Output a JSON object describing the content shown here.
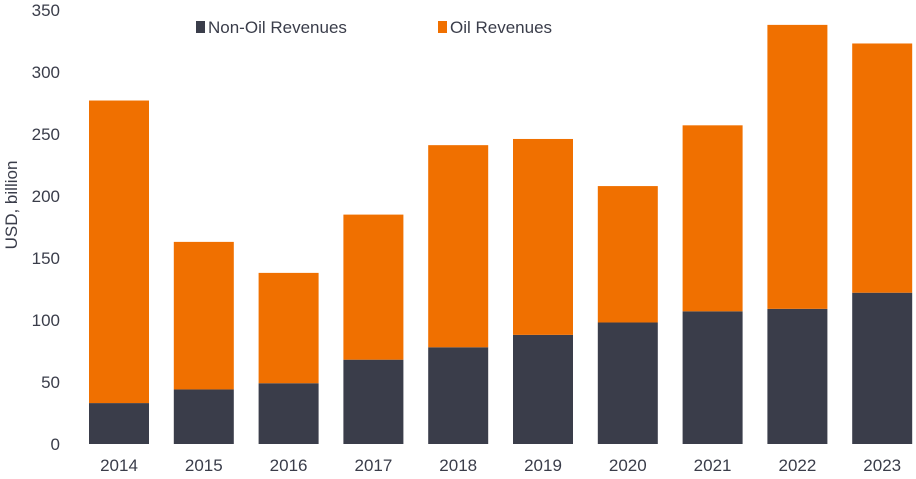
{
  "chart_data": {
    "type": "bar",
    "stacked": true,
    "title": "",
    "xlabel": "",
    "ylabel": "USD, billion",
    "ylim": [
      0,
      350
    ],
    "yticks": [
      0,
      50,
      100,
      150,
      200,
      250,
      300,
      350
    ],
    "grid": false,
    "legend_position": "top",
    "categories": [
      "2014",
      "2015",
      "2016",
      "2017",
      "2018",
      "2019",
      "2020",
      "2021",
      "2022",
      "2023"
    ],
    "series": [
      {
        "name": "Non-Oil Revenues",
        "color": "#3a3d4a",
        "values": [
          33,
          44,
          49,
          68,
          78,
          88,
          98,
          107,
          109,
          122
        ]
      },
      {
        "name": "Oil Revenues",
        "color": "#f07000",
        "values": [
          244,
          119,
          89,
          117,
          163,
          158,
          110,
          150,
          229,
          201
        ]
      }
    ]
  }
}
